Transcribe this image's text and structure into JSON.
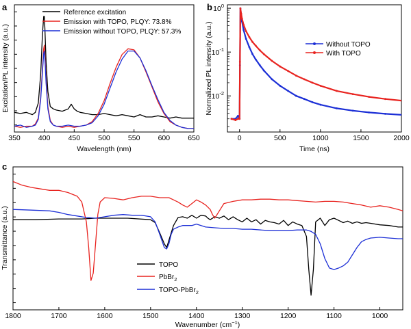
{
  "panels": {
    "a": {
      "letter": "a",
      "xlabel": "Wavelength (nm)",
      "ylabel": "Excitation/PL intensity (a.u.)",
      "xlim": [
        350,
        650
      ],
      "xticks": [
        "350",
        "400",
        "450",
        "500",
        "550",
        "600",
        "650"
      ]
    },
    "b": {
      "letter": "b",
      "xlabel": "Time (ns)",
      "ylabel": "Normalized PL intensity (a.u.)",
      "xlim": [
        -150,
        2000
      ],
      "xticks": [
        "0",
        "500",
        "1000",
        "1500",
        "2000"
      ],
      "ylog": true,
      "ylim": [
        0.0015,
        1.2
      ],
      "ytick_base": "10",
      "ytick_exps": [
        "0",
        "-1",
        "-2"
      ]
    },
    "c": {
      "letter": "c",
      "xlabel": "Wavenumber (cm",
      "xlabel_sup": "−1",
      "xlabel_tail": ")",
      "ylabel": "Transmittance (a.u.)",
      "xlim": [
        1800,
        950
      ],
      "xticks": [
        "1800",
        "1700",
        "1600",
        "1500",
        "1400",
        "1300",
        "1200",
        "1100",
        "1000"
      ]
    }
  },
  "legend": {
    "a": [
      {
        "label": "Reference excitation",
        "color": "#000000"
      },
      {
        "label": "Emission with TOPO, PLQY: 73.8%",
        "color": "#e8231f"
      },
      {
        "label": "Emission without TOPO, PLQY:  57.3%",
        "color": "#1c2fd6"
      }
    ],
    "b": [
      {
        "label": "Without TOPO",
        "color": "#1c2fd6"
      },
      {
        "label": "With TOPO",
        "color": "#e8231f"
      }
    ],
    "c": [
      {
        "label": "TOPO",
        "sub": "",
        "color": "#000000"
      },
      {
        "label": "PbBr",
        "sub": "2",
        "color": "#e8231f"
      },
      {
        "label": "TOPO-PbBr",
        "sub": "2",
        "color": "#1c2fd6"
      }
    ]
  },
  "chart_data": [
    {
      "type": "line",
      "panel": "a",
      "xlim": [
        350,
        650
      ],
      "ylim": [
        0,
        1.1
      ],
      "series": [
        {
          "name": "Reference excitation",
          "color": "#000000",
          "x": [
            350,
            360,
            370,
            380,
            385,
            390,
            394,
            397,
            399,
            400,
            401,
            403,
            406,
            410,
            415,
            420,
            430,
            440,
            445,
            450,
            455,
            460,
            470,
            480,
            490,
            500,
            510,
            520,
            530,
            540,
            550,
            560,
            570,
            580,
            590,
            600,
            610,
            620,
            630,
            640,
            650
          ],
          "y": [
            0.17,
            0.16,
            0.17,
            0.15,
            0.17,
            0.25,
            0.5,
            0.85,
            1.0,
            1.0,
            0.9,
            0.6,
            0.35,
            0.22,
            0.2,
            0.19,
            0.18,
            0.2,
            0.24,
            0.2,
            0.18,
            0.17,
            0.16,
            0.15,
            0.15,
            0.16,
            0.15,
            0.14,
            0.15,
            0.14,
            0.13,
            0.15,
            0.13,
            0.13,
            0.14,
            0.13,
            0.12,
            0.13,
            0.12,
            0.12,
            0.12
          ]
        },
        {
          "name": "Emission with TOPO, PLQY: 73.8%",
          "color": "#e8231f",
          "x": [
            350,
            360,
            370,
            380,
            385,
            390,
            394,
            397,
            399,
            400,
            401,
            403,
            406,
            410,
            415,
            420,
            430,
            440,
            450,
            460,
            470,
            480,
            490,
            500,
            510,
            520,
            530,
            540,
            550,
            560,
            570,
            580,
            590,
            600,
            610,
            620,
            630,
            640,
            650
          ],
          "y": [
            0.05,
            0.04,
            0.05,
            0.05,
            0.07,
            0.12,
            0.3,
            0.55,
            0.72,
            0.75,
            0.68,
            0.45,
            0.22,
            0.1,
            0.06,
            0.05,
            0.04,
            0.05,
            0.04,
            0.05,
            0.06,
            0.09,
            0.16,
            0.27,
            0.42,
            0.56,
            0.67,
            0.72,
            0.71,
            0.64,
            0.52,
            0.39,
            0.26,
            0.16,
            0.09,
            0.06,
            0.04,
            0.03,
            0.03
          ]
        },
        {
          "name": "Emission without TOPO, PLQY:  57.3%",
          "color": "#1c2fd6",
          "x": [
            350,
            360,
            370,
            380,
            385,
            390,
            394,
            397,
            399,
            400,
            401,
            403,
            406,
            410,
            415,
            420,
            430,
            440,
            450,
            460,
            470,
            480,
            490,
            500,
            510,
            520,
            530,
            540,
            550,
            560,
            570,
            580,
            590,
            600,
            610,
            620,
            630,
            640,
            650
          ],
          "y": [
            0.05,
            0.06,
            0.04,
            0.05,
            0.06,
            0.11,
            0.28,
            0.52,
            0.68,
            0.7,
            0.64,
            0.42,
            0.2,
            0.09,
            0.06,
            0.05,
            0.05,
            0.06,
            0.05,
            0.05,
            0.06,
            0.08,
            0.14,
            0.24,
            0.38,
            0.52,
            0.63,
            0.7,
            0.7,
            0.64,
            0.53,
            0.4,
            0.28,
            0.17,
            0.1,
            0.06,
            0.04,
            0.03,
            0.03
          ]
        }
      ]
    },
    {
      "type": "line",
      "panel": "b",
      "xlim": [
        -150,
        2000
      ],
      "ylog": true,
      "series": [
        {
          "name": "Without TOPO",
          "color": "#1c2fd6",
          "x": [
            -100,
            -50,
            -20,
            0,
            5,
            10,
            20,
            30,
            50,
            80,
            120,
            160,
            200,
            250,
            300,
            400,
            500,
            600,
            700,
            800,
            900,
            1000,
            1200,
            1400,
            1600,
            1800,
            2000
          ],
          "y": [
            0.003,
            0.003,
            0.0035,
            0.003,
            0.05,
            1.0,
            0.7,
            0.5,
            0.32,
            0.2,
            0.13,
            0.09,
            0.068,
            0.05,
            0.038,
            0.024,
            0.017,
            0.013,
            0.01,
            0.0085,
            0.0072,
            0.0063,
            0.0052,
            0.0046,
            0.0042,
            0.0039,
            0.0037
          ]
        },
        {
          "name": "With TOPO",
          "color": "#e8231f",
          "x": [
            -100,
            -50,
            -20,
            0,
            5,
            10,
            20,
            30,
            50,
            80,
            120,
            160,
            200,
            250,
            300,
            400,
            500,
            600,
            700,
            800,
            900,
            1000,
            1200,
            1400,
            1600,
            1800,
            2000
          ],
          "y": [
            0.003,
            0.0028,
            0.003,
            0.003,
            0.06,
            1.0,
            0.75,
            0.58,
            0.42,
            0.3,
            0.22,
            0.17,
            0.14,
            0.11,
            0.09,
            0.063,
            0.047,
            0.037,
            0.029,
            0.024,
            0.02,
            0.017,
            0.013,
            0.011,
            0.0095,
            0.0085,
            0.0078
          ]
        }
      ]
    },
    {
      "type": "line",
      "panel": "c",
      "xlim": [
        1800,
        950
      ],
      "series": [
        {
          "name": "TOPO",
          "color": "#000000",
          "x": [
            1800,
            1750,
            1700,
            1650,
            1620,
            1600,
            1550,
            1500,
            1490,
            1480,
            1470,
            1465,
            1460,
            1450,
            1440,
            1430,
            1420,
            1410,
            1400,
            1390,
            1380,
            1375,
            1370,
            1360,
            1350,
            1340,
            1330,
            1320,
            1310,
            1300,
            1290,
            1280,
            1270,
            1260,
            1250,
            1240,
            1230,
            1220,
            1210,
            1200,
            1190,
            1180,
            1170,
            1160,
            1155,
            1150,
            1145,
            1140,
            1130,
            1120,
            1110,
            1100,
            1090,
            1080,
            1070,
            1060,
            1050,
            1040,
            1030,
            1020,
            1000,
            980,
            960,
            950
          ],
          "y": [
            0.52,
            0.52,
            0.51,
            0.51,
            0.5,
            0.5,
            0.5,
            0.52,
            0.56,
            0.7,
            0.85,
            0.9,
            0.8,
            0.6,
            0.49,
            0.48,
            0.5,
            0.46,
            0.5,
            0.46,
            0.47,
            0.5,
            0.52,
            0.48,
            0.5,
            0.47,
            0.52,
            0.48,
            0.52,
            0.55,
            0.5,
            0.55,
            0.52,
            0.58,
            0.53,
            0.55,
            0.56,
            0.58,
            0.53,
            0.6,
            0.55,
            0.58,
            0.6,
            0.75,
            1.2,
            1.55,
            1.2,
            0.55,
            0.5,
            0.6,
            0.52,
            0.5,
            0.53,
            0.56,
            0.54,
            0.57,
            0.55,
            0.57,
            0.56,
            0.57,
            0.59,
            0.6,
            0.62,
            0.62
          ]
        },
        {
          "name": "PbBr2",
          "color": "#e8231f",
          "x": [
            1800,
            1780,
            1760,
            1740,
            1720,
            1700,
            1680,
            1660,
            1650,
            1640,
            1635,
            1630,
            1625,
            1620,
            1615,
            1610,
            1600,
            1580,
            1560,
            1540,
            1520,
            1500,
            1480,
            1460,
            1450,
            1440,
            1430,
            1420,
            1410,
            1400,
            1390,
            1380,
            1370,
            1365,
            1360,
            1350,
            1340,
            1320,
            1300,
            1280,
            1260,
            1240,
            1220,
            1200,
            1180,
            1160,
            1140,
            1120,
            1100,
            1080,
            1060,
            1040,
            1020,
            1000,
            980,
            960,
            950
          ],
          "y": [
            0.0,
            0.05,
            0.08,
            0.1,
            0.12,
            0.12,
            0.15,
            0.2,
            0.28,
            0.55,
            0.9,
            1.35,
            1.25,
            0.85,
            0.45,
            0.28,
            0.22,
            0.23,
            0.25,
            0.22,
            0.2,
            0.2,
            0.22,
            0.22,
            0.25,
            0.28,
            0.32,
            0.35,
            0.3,
            0.25,
            0.28,
            0.32,
            0.38,
            0.45,
            0.5,
            0.4,
            0.3,
            0.27,
            0.25,
            0.25,
            0.24,
            0.24,
            0.25,
            0.25,
            0.26,
            0.27,
            0.28,
            0.27,
            0.27,
            0.28,
            0.3,
            0.32,
            0.35,
            0.33,
            0.35,
            0.38,
            0.4
          ]
        },
        {
          "name": "TOPO-PbBr2",
          "color": "#1c2fd6",
          "x": [
            1800,
            1760,
            1720,
            1700,
            1680,
            1660,
            1640,
            1620,
            1600,
            1580,
            1560,
            1540,
            1520,
            1500,
            1490,
            1480,
            1470,
            1465,
            1460,
            1455,
            1450,
            1440,
            1430,
            1420,
            1410,
            1400,
            1390,
            1380,
            1360,
            1340,
            1320,
            1300,
            1280,
            1260,
            1240,
            1220,
            1200,
            1180,
            1160,
            1150,
            1140,
            1130,
            1120,
            1110,
            1100,
            1090,
            1080,
            1070,
            1060,
            1050,
            1040,
            1030,
            1020,
            1000,
            980,
            960,
            950
          ],
          "y": [
            0.38,
            0.39,
            0.4,
            0.42,
            0.45,
            0.47,
            0.49,
            0.5,
            0.48,
            0.46,
            0.45,
            0.46,
            0.46,
            0.48,
            0.55,
            0.72,
            0.9,
            0.92,
            0.85,
            0.72,
            0.65,
            0.62,
            0.6,
            0.6,
            0.6,
            0.58,
            0.6,
            0.62,
            0.63,
            0.64,
            0.64,
            0.65,
            0.65,
            0.66,
            0.67,
            0.67,
            0.67,
            0.66,
            0.66,
            0.68,
            0.72,
            0.85,
            1.05,
            1.18,
            1.2,
            1.18,
            1.15,
            1.1,
            1.0,
            0.9,
            0.82,
            0.79,
            0.77,
            0.76,
            0.77,
            0.78,
            0.78
          ]
        }
      ]
    }
  ]
}
